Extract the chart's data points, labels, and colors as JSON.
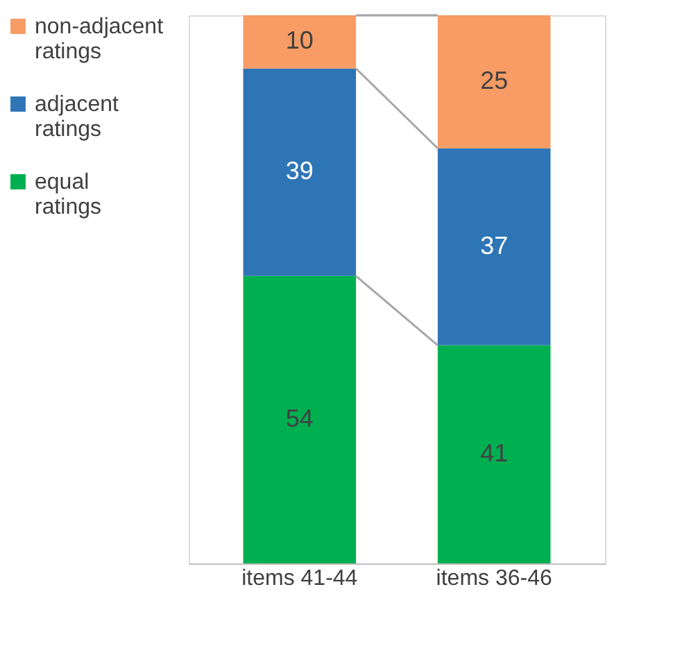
{
  "chart_data": {
    "type": "bar",
    "stacked": true,
    "categories": [
      "items 41-44",
      "items 36-46"
    ],
    "series": [
      {
        "name": "equal ratings",
        "color": "#00b050",
        "values": [
          54,
          41
        ]
      },
      {
        "name": "adjacent ratings",
        "color": "#2e75b6",
        "values": [
          39,
          37
        ]
      },
      {
        "name": "non-adjacent ratings",
        "color": "#f79c64",
        "values": [
          10,
          25
        ]
      }
    ],
    "data_labels": true,
    "legend": "top left",
    "grid": false
  }
}
